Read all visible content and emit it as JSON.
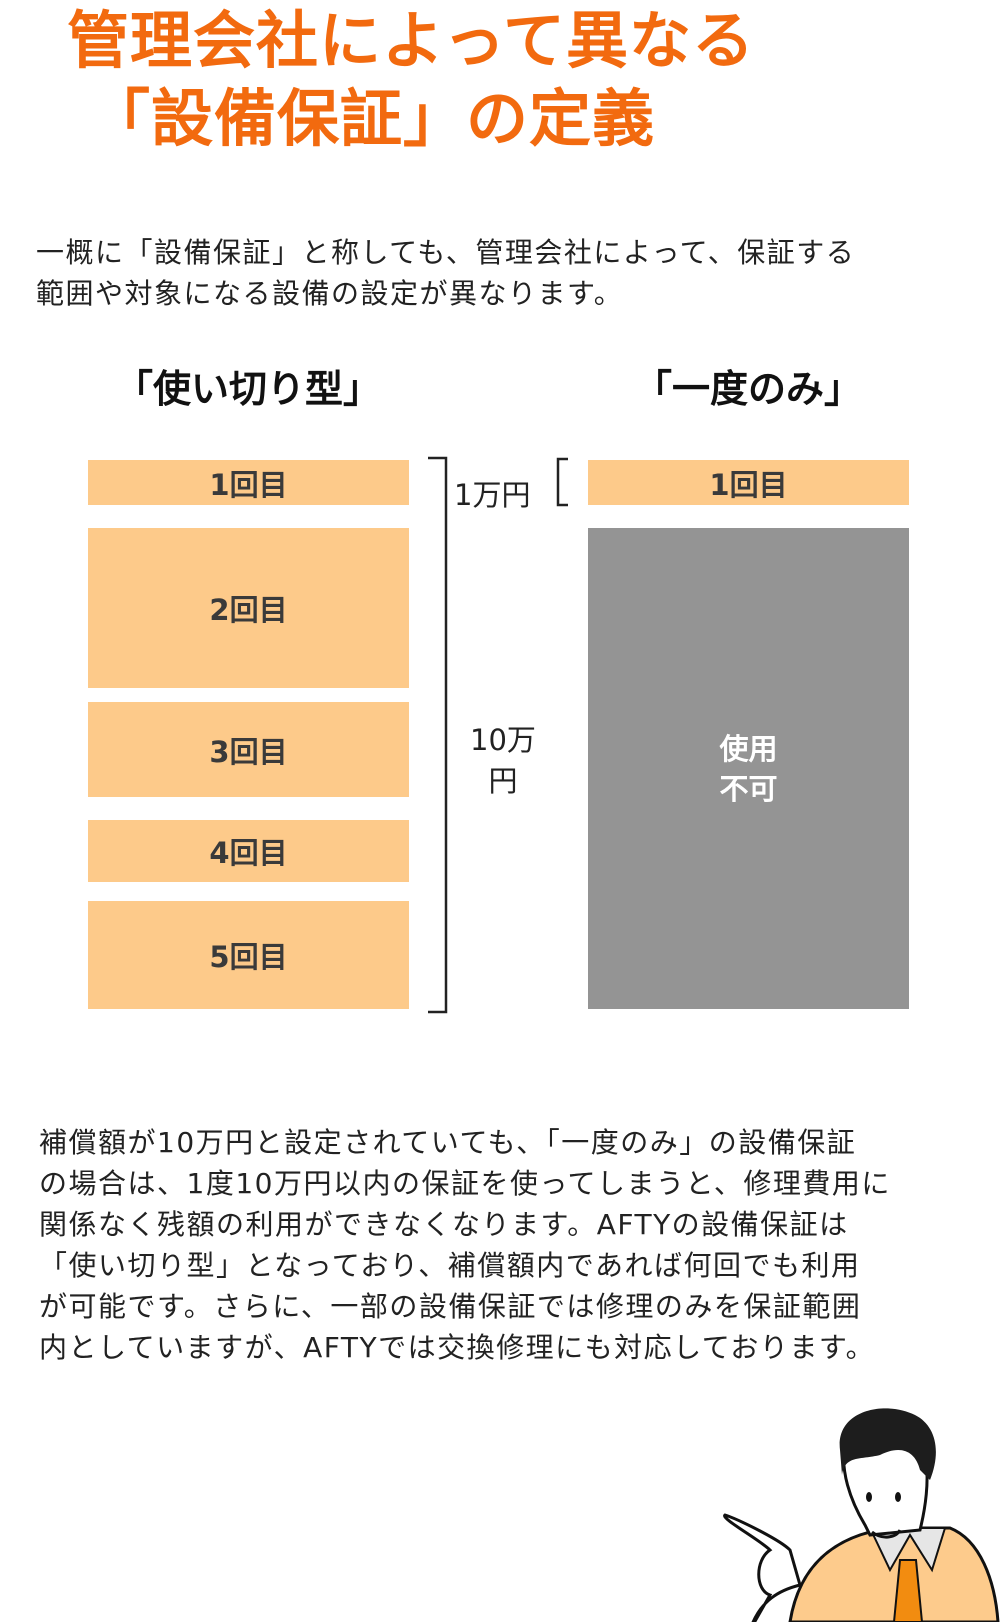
{
  "title": {
    "line1": "管理会社によって異なる",
    "line2": "「設備保証」の定義",
    "color": "#f26a0f"
  },
  "intro": {
    "lines": [
      "一概に「設備保証」と称しても、管理会社によって、保証する",
      "範囲や対象になる設備の設定が異なります。"
    ]
  },
  "diagram": {
    "left": {
      "heading": "「使い切り型」",
      "boxes": [
        "1回目",
        "2回目",
        "3回目",
        "4回目",
        "5回目"
      ]
    },
    "right": {
      "heading": "「一度のみ」",
      "box": "1回目",
      "unusable_line1": "使用",
      "unusable_line2": "不可"
    },
    "amount_small": "1万円",
    "amount_total_line1": "10万",
    "amount_total_line2": "円",
    "colors": {
      "used": "#fdca8a",
      "unusable": "#949494"
    }
  },
  "body": {
    "lines": [
      "補償額が10万円と設定されていても、「一度のみ」の設備保証",
      "の場合は、1度10万円以内の保証を使ってしまうと、修理費用に",
      "関係なく残額の利用ができなくなります。AFTYの設備保証は",
      "「使い切り型」となっており、補償額内であれば何回でも利用",
      "が可能です。さらに、一部の設備保証では修理のみを保証範囲",
      "内としていますが、AFTYでは交換修理にも対応しております。"
    ]
  },
  "illustration": {
    "icon": "businessman-pointing-icon"
  }
}
